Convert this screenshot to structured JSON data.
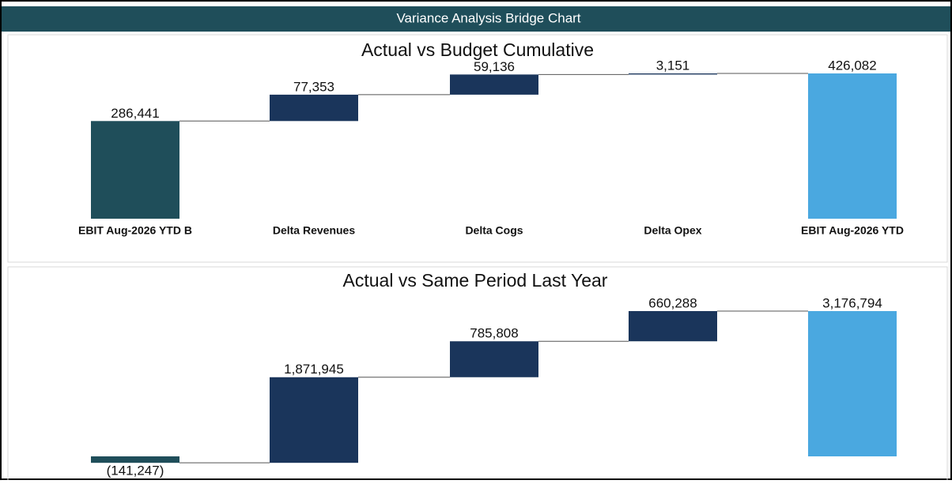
{
  "header": {
    "title": "Variance Analysis Bridge Chart"
  },
  "chart_data": [
    {
      "type": "waterfall",
      "title": "Actual vs Budget Cumulative",
      "categories": [
        "EBIT Aug-2026 YTD B",
        "Delta Revenues",
        "Delta Cogs",
        "Delta Opex",
        "EBIT Aug-2026 YTD"
      ],
      "values": [
        286441,
        77353,
        59136,
        3151,
        426082
      ],
      "value_labels": [
        "286,441",
        "77,353",
        "59,136",
        "3,151",
        "426,082"
      ],
      "colors": [
        "#1f4e5a",
        "#1a355b",
        "#1a355b",
        "#1a355b",
        "#4aa8e0"
      ]
    },
    {
      "type": "waterfall",
      "title": "Actual vs Same Period Last Year",
      "categories": [
        null,
        null,
        null,
        null,
        null
      ],
      "values": [
        -141247,
        1871945,
        785808,
        660288,
        3176794
      ],
      "value_labels": [
        "(141,247)",
        "1,871,945",
        "785,808",
        "660,288",
        "3,176,794"
      ],
      "colors": [
        "#1f4e5a",
        "#1a355b",
        "#1a355b",
        "#1a355b",
        "#4aa8e0"
      ]
    }
  ]
}
